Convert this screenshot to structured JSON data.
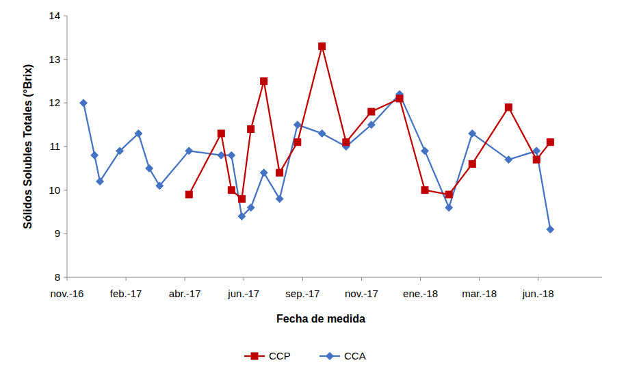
{
  "chart_data": {
    "type": "line",
    "x_label": "Fecha de medida",
    "y_label": "Sólidos Solubles Totales (°Brix)",
    "xlim": [
      0,
      21.8
    ],
    "xticks": [
      {
        "value": 0,
        "label": "nov.-16"
      },
      {
        "value": 2.4,
        "label": "feb.-17"
      },
      {
        "value": 4.8,
        "label": "abr.-17"
      },
      {
        "value": 7.2,
        "label": "jun.-17"
      },
      {
        "value": 9.6,
        "label": "sep.-17"
      },
      {
        "value": 12,
        "label": "nov.-17"
      },
      {
        "value": 14.4,
        "label": "ene.-18"
      },
      {
        "value": 16.8,
        "label": "mar.-18"
      },
      {
        "value": 19.2,
        "label": "jun.-18"
      }
    ],
    "ylim": [
      8,
      14
    ],
    "yticks": [
      8,
      9,
      10,
      11,
      12,
      13,
      14
    ],
    "grid": false,
    "legend": "bottom",
    "series": [
      {
        "name": "CCP",
        "color": "#c00000",
        "marker": "square",
        "line_style": "solid",
        "x": [
          4.97,
          6.28,
          6.7,
          7.12,
          7.49,
          8.02,
          8.66,
          9.39,
          10.39,
          11.37,
          12.4,
          13.55,
          14.58,
          15.56,
          16.51,
          17.99,
          19.13,
          19.69
        ],
        "values": [
          9.9,
          11.3,
          10.0,
          9.8,
          11.4,
          12.5,
          10.4,
          11.1,
          13.3,
          11.1,
          11.8,
          12.1,
          10.0,
          9.9,
          10.6,
          11.9,
          10.7,
          11.1
        ]
      },
      {
        "name": "CCA",
        "color": "#4472c4",
        "marker": "diamond",
        "line_style": "solid",
        "x": [
          0.67,
          1.12,
          1.34,
          2.15,
          2.91,
          3.35,
          3.77,
          4.97,
          6.28,
          6.7,
          7.12,
          7.49,
          8.02,
          8.66,
          9.39,
          10.39,
          11.37,
          12.4,
          13.55,
          14.58,
          15.56,
          16.51,
          17.99,
          19.13,
          19.69
        ],
        "values": [
          12.0,
          10.8,
          10.2,
          10.9,
          11.3,
          10.5,
          10.1,
          10.9,
          10.8,
          10.8,
          9.4,
          9.6,
          10.4,
          9.8,
          11.5,
          11.3,
          11.0,
          11.5,
          12.2,
          10.9,
          9.6,
          11.3,
          10.7,
          10.9,
          9.1
        ]
      }
    ]
  }
}
